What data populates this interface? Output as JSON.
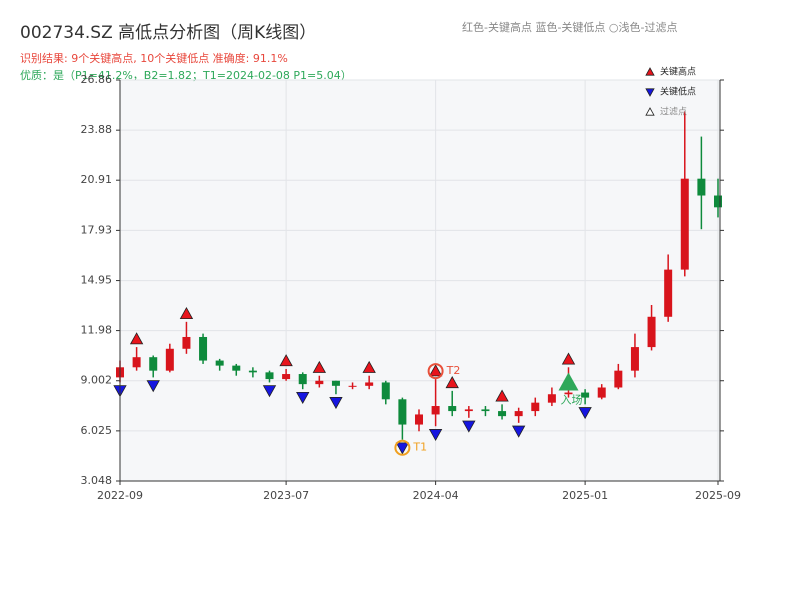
{
  "chart_data": {
    "type": "candlestick",
    "title": "002734.SZ 高低点分析图（周K线图）",
    "subtitle": "识别结果: 9个关键高点, 10个关键低点  准确度: 91.1%",
    "subtitle2": "优质：是（P1=41.2%，B2=1.82；T1=2024-02-08 P1=5.04）",
    "header_legend": "红色-关键高点    蓝色-关键低点   ○浅色-过滤点",
    "up_color": "#d8141c",
    "down_color": "#0e8a3c",
    "grid": true,
    "legend_position": "top-right",
    "categories": [
      "2022-09",
      "2022-10",
      "2022-11",
      "2022-12",
      "2023-01",
      "2023-02",
      "2023-03",
      "2023-04",
      "2023-05",
      "2023-06",
      "2023-07",
      "2023-08",
      "2023-09",
      "2023-10",
      "2023-11",
      "2023-12",
      "2024-01",
      "2024-02",
      "2024-03",
      "2024-04",
      "2024-05",
      "2024-06",
      "2024-07",
      "2024-08",
      "2024-09",
      "2024-10",
      "2024-11",
      "2024-12",
      "2025-01",
      "2025-02",
      "2025-03",
      "2025-04",
      "2025-05",
      "2025-06",
      "2025-07",
      "2025-08",
      "2025-09"
    ],
    "xticks": [
      "2022-09",
      "2023-07",
      "2024-04",
      "2025-01",
      "2025-09"
    ],
    "open": [
      9.2,
      9.8,
      10.4,
      9.6,
      10.9,
      11.6,
      10.2,
      9.9,
      9.6,
      9.5,
      9.1,
      9.4,
      8.8,
      9.0,
      8.7,
      8.7,
      8.9,
      7.9,
      6.4,
      7.0,
      7.5,
      7.2,
      7.3,
      7.2,
      6.9,
      7.2,
      7.7,
      8.2,
      8.3,
      8.0,
      8.6,
      9.6,
      11.0,
      12.8,
      15.6,
      21.0,
      20.0
    ],
    "close": [
      9.8,
      10.4,
      9.6,
      10.9,
      11.6,
      10.2,
      9.9,
      9.6,
      9.5,
      9.1,
      9.4,
      8.8,
      9.0,
      8.7,
      8.7,
      8.9,
      7.9,
      6.4,
      7.0,
      7.5,
      7.2,
      7.3,
      7.2,
      6.9,
      7.2,
      7.7,
      8.2,
      8.3,
      8.0,
      8.6,
      9.6,
      11.0,
      12.8,
      15.6,
      21.0,
      20.0,
      19.3
    ],
    "high": [
      10.2,
      11.0,
      10.5,
      11.2,
      12.5,
      11.8,
      10.3,
      10.0,
      9.8,
      9.6,
      9.7,
      9.5,
      9.3,
      9.0,
      8.9,
      9.3,
      9.0,
      8.0,
      7.3,
      9.1,
      8.4,
      7.5,
      7.5,
      7.6,
      7.4,
      8.0,
      8.6,
      9.8,
      8.5,
      8.8,
      10.0,
      11.8,
      13.5,
      16.5,
      25.0,
      23.5,
      21.0
    ],
    "low": [
      8.9,
      9.6,
      9.2,
      9.5,
      10.6,
      10.0,
      9.6,
      9.3,
      9.2,
      8.9,
      9.0,
      8.5,
      8.6,
      8.2,
      8.5,
      8.5,
      7.6,
      5.5,
      6.0,
      6.3,
      6.9,
      6.8,
      6.9,
      6.7,
      6.5,
      6.9,
      7.5,
      8.0,
      7.6,
      7.9,
      8.5,
      9.2,
      10.8,
      12.5,
      15.2,
      18.0,
      18.7
    ],
    "series": [
      {
        "name": "关键高点",
        "color": "#e8141c",
        "marker": "up",
        "x": [
          "2022-10",
          "2023-01",
          "2023-07",
          "2023-09",
          "2023-12",
          "2024-04",
          "2024-05",
          "2024-08",
          "2024-12"
        ],
        "values": [
          11.0,
          12.5,
          9.7,
          9.3,
          9.3,
          9.1,
          8.4,
          7.6,
          9.8
        ]
      },
      {
        "name": "关键低点",
        "color": "#1616e0",
        "marker": "down",
        "x": [
          "2022-09",
          "2022-11",
          "2023-06",
          "2023-08",
          "2023-10",
          "2024-02",
          "2024-04",
          "2024-06",
          "2024-09",
          "2025-01"
        ],
        "values": [
          8.9,
          9.2,
          8.9,
          8.5,
          8.2,
          5.5,
          6.3,
          6.8,
          6.5,
          7.6
        ]
      },
      {
        "name": "过滤点",
        "color": "#ffffff",
        "marker": "up",
        "x": [],
        "values": []
      }
    ],
    "annotations": [
      {
        "text": "T1",
        "x": "2024-02",
        "value": 5.5,
        "color": "#f0a020"
      },
      {
        "text": "T2",
        "x": "2024-04",
        "value": 9.1,
        "color": "#e8503a"
      },
      {
        "text": "入场",
        "x": "2024-12",
        "value": 8.9,
        "color": "#2ea85a"
      }
    ],
    "ylim": [
      3.048,
      26.86
    ],
    "yticks": [
      3.048,
      6.025,
      9.002,
      11.98,
      14.95,
      17.93,
      20.91,
      23.88,
      26.86
    ]
  }
}
